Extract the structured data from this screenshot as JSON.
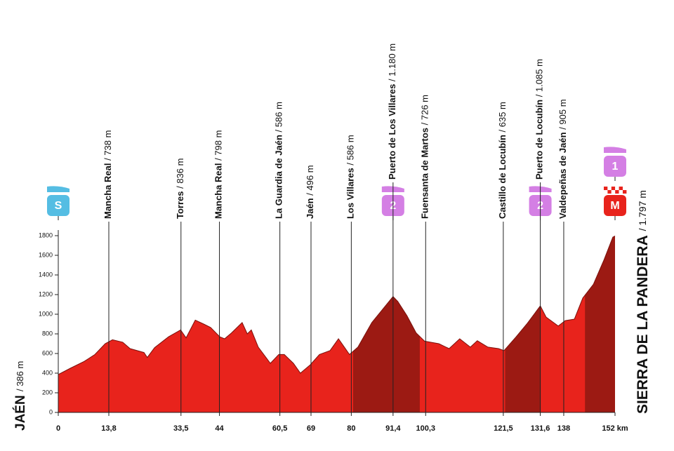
{
  "chart_data": {
    "type": "area",
    "start": {
      "name": "JAÉN",
      "altitude": 386,
      "altitude_label": "/ 386 m"
    },
    "finish": {
      "name": "SIERRA DE LA PANDERA",
      "altitude": 1797,
      "altitude_label": "/ 1.797 m"
    },
    "profile": {
      "color": "#e8231c",
      "climb_color": "#9c1a13",
      "km": [
        0,
        3.3,
        7.1,
        10,
        12.8,
        14.8,
        17.6,
        19.6,
        23.4,
        24.3,
        26.3,
        30.1,
        33.4,
        34.9,
        37.4,
        39.7,
        41.6,
        44.1,
        45.4,
        47.3,
        50.2,
        51.6,
        52.7,
        54.6,
        57.9,
        60.2,
        61.7,
        64.2,
        66.1,
        68.8,
        71.3,
        74.2,
        76.5,
        78,
        79.5,
        81.8,
        85.6,
        91.4,
        92.7,
        95.2,
        97.7,
        100,
        103.9,
        106.7,
        109.6,
        112.5,
        114.4,
        117.3,
        120.2,
        121.7,
        125,
        127.9,
        131.6,
        133.2,
        136.5,
        138.4,
        140.9,
        143.2,
        146.1,
        149,
        151.4,
        152
      ],
      "elevation": [
        386,
        450,
        520,
        590,
        700,
        740,
        715,
        650,
        610,
        560,
        660,
        770,
        840,
        760,
        940,
        900,
        865,
        770,
        750,
        810,
        915,
        800,
        840,
        665,
        500,
        590,
        590,
        500,
        400,
        485,
        590,
        630,
        750,
        670,
        590,
        665,
        915,
        1180,
        1130,
        985,
        810,
        726,
        700,
        650,
        750,
        665,
        730,
        665,
        650,
        630,
        770,
        900,
        1085,
        970,
        880,
        935,
        950,
        1165,
        1305,
        1555,
        1785,
        1797
      ]
    },
    "climbs": [
      [
        80.5,
        98.7
      ],
      [
        122,
        131.6
      ],
      [
        143.8,
        152
      ]
    ],
    "waypoints": [
      {
        "name": "Mancha Real",
        "km": 13.8,
        "altitude": 738,
        "altitude_label": "/ 738 m"
      },
      {
        "name": "Torres",
        "km": 33.5,
        "altitude": 836,
        "altitude_label": "/ 836 m"
      },
      {
        "name": "Mancha Real",
        "km": 44,
        "altitude": 798,
        "altitude_label": "/ 798 m"
      },
      {
        "name": "La Guardia de Jaén",
        "km": 60.5,
        "altitude": 586,
        "altitude_label": "/ 586 m"
      },
      {
        "name": "Jaén",
        "km": 69,
        "altitude": 496,
        "altitude_label": "/ 496 m"
      },
      {
        "name": "Los Villares",
        "km": 80,
        "altitude": 586,
        "altitude_label": "/ 586 m"
      },
      {
        "name": "Puerto de Los Villares",
        "km": 91.4,
        "altitude": 1180,
        "altitude_label": "/ 1.180 m"
      },
      {
        "name": "Fuensanta de Martos",
        "km": 100.3,
        "altitude": 726,
        "altitude_label": "/ 726 m"
      },
      {
        "name": "Castillo de Locubín",
        "km": 121.5,
        "altitude": 635,
        "altitude_label": "/ 635 m"
      },
      {
        "name": "Puerto de Locubín",
        "km": 131.6,
        "altitude": 1085,
        "altitude_label": "/ 1.085 m"
      },
      {
        "name": "Valdepeñas de Jaén",
        "km": 138,
        "altitude": 905,
        "altitude_label": "/ 905 m"
      }
    ],
    "markers": [
      {
        "km": 0,
        "label": "S",
        "color": "#55bde3"
      },
      {
        "km": 91.4,
        "label": "2",
        "color": "#d47fe4"
      },
      {
        "km": 131.6,
        "label": "2",
        "color": "#d47fe4"
      },
      {
        "km": 152,
        "label": "M",
        "color": "#e8231c"
      },
      {
        "km": 152,
        "label": "1",
        "color": "#d47fe4"
      }
    ],
    "xlim": [
      0,
      152
    ],
    "xticks": [
      0,
      {
        "value": 13.8,
        "label": "13,8"
      },
      {
        "value": 33.5,
        "label": "33,5"
      },
      44,
      {
        "value": 60.5,
        "label": "60,5"
      },
      69,
      80,
      {
        "value": 91.4,
        "label": "91,4"
      },
      {
        "value": 100.3,
        "label": "100,3"
      },
      {
        "value": 121.5,
        "label": "121,5"
      },
      {
        "value": 131.6,
        "label": "131,6"
      },
      138,
      {
        "value": 152,
        "label": "152 km"
      }
    ],
    "ylim": [
      0,
      1800
    ],
    "yticks": [
      0,
      200,
      400,
      600,
      800,
      1000,
      1200,
      1400,
      1600,
      1800
    ]
  }
}
